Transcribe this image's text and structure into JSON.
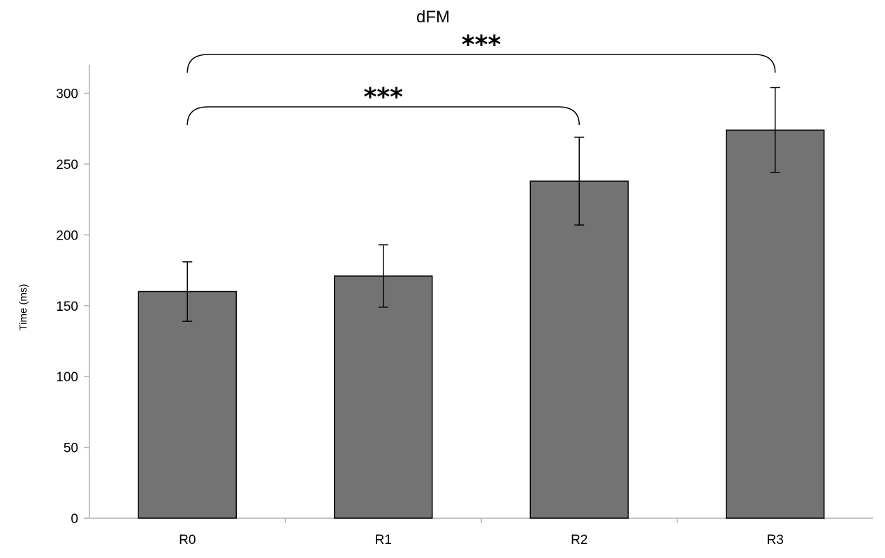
{
  "chart_data": {
    "type": "bar",
    "title": "dFM",
    "xlabel": "",
    "ylabel": "Time (ms)",
    "categories": [
      "R0",
      "R1",
      "R2",
      "R3"
    ],
    "values": [
      160,
      171,
      238,
      274
    ],
    "errors": [
      21,
      22,
      31,
      30
    ],
    "ylim": [
      0,
      320
    ],
    "yticks": [
      0,
      50,
      100,
      150,
      200,
      250,
      300
    ],
    "ytick_labels": [
      "0",
      "50",
      "100",
      "150",
      "200",
      "250",
      "300"
    ],
    "grid": false,
    "legend": "none",
    "bar_color": "#737373",
    "annotations": [
      {
        "from": "R0",
        "to": "R2",
        "label": "***"
      },
      {
        "from": "R0",
        "to": "R3",
        "label": "***"
      }
    ]
  }
}
